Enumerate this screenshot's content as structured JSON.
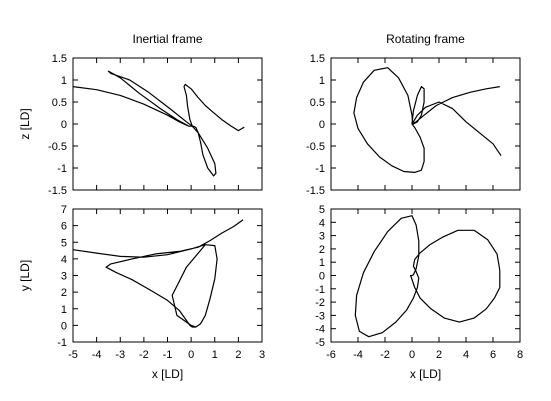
{
  "chart_data": [
    {
      "type": "line",
      "title": "Inertial frame",
      "xlabel": "",
      "ylabel": "z [LD]",
      "xlim": [
        -5,
        3
      ],
      "ylim": [
        -1.5,
        1.5
      ],
      "xticks": [],
      "yticks": [
        "1.5",
        "1",
        "0.5",
        "0",
        "-0.5",
        "-1",
        "-1.5"
      ],
      "grid": false,
      "series": [
        {
          "x": [
            -5.0,
            -4.0,
            -3.0,
            -2.0,
            -1.0,
            -0.5,
            -0.1,
            0.05,
            -0.2,
            -0.9,
            -1.8,
            -2.6,
            -3.4,
            -3.5,
            -3.0,
            -2.2,
            -1.3,
            -0.6,
            -0.1,
            0.05,
            0.1,
            0.2,
            0.3,
            0.4,
            0.5,
            0.7,
            0.95,
            1.05,
            1.0,
            0.7,
            0.3,
            0.05,
            -0.05,
            -0.15,
            -0.2,
            -0.3,
            -0.25,
            0.0,
            0.3,
            0.6,
            0.9,
            1.3,
            1.7,
            2.0,
            2.25
          ],
          "y": [
            0.85,
            0.78,
            0.65,
            0.45,
            0.2,
            0.05,
            -0.05,
            -0.05,
            0.05,
            0.35,
            0.72,
            1.0,
            1.15,
            1.2,
            1.05,
            0.7,
            0.35,
            0.1,
            -0.05,
            -0.05,
            -0.05,
            -0.08,
            -0.2,
            -0.42,
            -0.7,
            -1.0,
            -1.18,
            -1.12,
            -0.9,
            -0.55,
            -0.2,
            -0.05,
            0.1,
            0.4,
            0.65,
            0.85,
            0.9,
            0.8,
            0.6,
            0.42,
            0.28,
            0.1,
            -0.05,
            -0.15,
            -0.07
          ]
        }
      ]
    },
    {
      "type": "line",
      "title": "Rotating frame",
      "xlabel": "",
      "ylabel": "",
      "xlim": [
        -6,
        8
      ],
      "ylim": [
        -1.5,
        1.5
      ],
      "xticks": [],
      "yticks": [
        "1.5",
        "1",
        "0.5",
        "0",
        "-0.5",
        "-1",
        "-1.5"
      ],
      "grid": false,
      "series": [
        {
          "x": [
            6.5,
            5.5,
            4.3,
            3.0,
            1.8,
            0.9,
            0.3,
            0.05,
            0.0,
            -0.3,
            -1.0,
            -1.8,
            -2.8,
            -3.6,
            -4.1,
            -4.3,
            -4.0,
            -3.3,
            -2.4,
            -1.5,
            -0.6,
            0.2,
            0.7,
            0.9,
            0.9,
            0.6,
            0.2,
            0.0,
            0.1,
            0.4,
            0.7,
            0.9,
            0.9,
            0.7,
            0.4,
            0.1,
            0.0,
            0.4,
            1.0,
            2.0,
            3.0,
            4.0,
            5.0,
            6.0,
            6.6
          ],
          "y": [
            0.85,
            0.8,
            0.72,
            0.6,
            0.42,
            0.2,
            0.05,
            0.0,
            0.2,
            0.65,
            1.05,
            1.28,
            1.22,
            0.95,
            0.6,
            0.25,
            -0.1,
            -0.45,
            -0.75,
            -0.95,
            -1.08,
            -1.1,
            -1.05,
            -0.85,
            -0.55,
            -0.3,
            -0.08,
            0.0,
            0.3,
            0.65,
            0.85,
            0.8,
            0.5,
            0.2,
            0.05,
            0.0,
            0.0,
            0.2,
            0.38,
            0.5,
            0.35,
            0.05,
            -0.2,
            -0.45,
            -0.72
          ]
        }
      ]
    },
    {
      "type": "line",
      "title": "",
      "xlabel": "x [LD]",
      "ylabel": "y [LD]",
      "xlim": [
        -5,
        3
      ],
      "ylim": [
        -1,
        7
      ],
      "xticks": [
        "-5",
        "-4",
        "-3",
        "-2",
        "-1",
        "0",
        "1",
        "2",
        "3"
      ],
      "yticks": [
        "7",
        "6",
        "5",
        "4",
        "3",
        "2",
        "1",
        "0",
        "-1"
      ],
      "grid": false,
      "series": [
        {
          "x": [
            -5.0,
            -4.0,
            -3.0,
            -2.0,
            -1.0,
            0.0,
            0.6,
            1.0,
            1.1,
            1.0,
            0.8,
            0.6,
            0.4,
            0.2,
            0.05,
            -0.05,
            -0.2,
            -0.5,
            -1.0,
            -1.7,
            -2.5,
            -3.2,
            -3.6,
            -3.4,
            -2.5,
            -1.5,
            -0.5,
            0.3,
            0.8,
            1.3,
            1.8,
            2.2
          ],
          "y": [
            4.55,
            4.35,
            4.15,
            4.1,
            4.25,
            4.6,
            4.85,
            4.8,
            4.0,
            2.8,
            1.6,
            0.6,
            0.1,
            -0.1,
            -0.1,
            0.0,
            0.3,
            0.9,
            1.5,
            2.1,
            2.75,
            3.2,
            3.5,
            3.7,
            4.0,
            4.3,
            4.45,
            4.7,
            5.1,
            5.55,
            5.95,
            6.35
          ]
        },
        {
          "x": [
            0.6,
            -0.2,
            -0.8,
            -0.6,
            0.0,
            0.2
          ],
          "y": [
            4.85,
            3.5,
            1.8,
            0.6,
            0.0,
            -0.1
          ]
        }
      ]
    },
    {
      "type": "line",
      "title": "",
      "xlabel": "x [LD]",
      "ylabel": "",
      "xlim": [
        -6,
        8
      ],
      "ylim": [
        -5,
        5
      ],
      "xticks": [
        "-6",
        "-4",
        "-2",
        "0",
        "2",
        "4",
        "6",
        "8"
      ],
      "yticks": [
        "5",
        "4",
        "3",
        "2",
        "1",
        "0",
        "-1",
        "-2",
        "-3",
        "-4",
        "-5"
      ],
      "grid": false,
      "series": [
        {
          "x": [
            6.5,
            6.3,
            5.6,
            4.6,
            3.4,
            2.3,
            1.3,
            0.6,
            0.2,
            0.1,
            0.3,
            0.5,
            0.4,
            0.1,
            -0.4,
            -1.2,
            -2.2,
            -3.2,
            -3.9,
            -4.2,
            -4.1,
            -3.6,
            -2.8,
            -1.8,
            -0.8,
            0.0,
            0.3,
            0.5,
            0.5,
            0.3,
            0.1,
            0.0,
            -0.1,
            0.0,
            0.2,
            0.6,
            1.4,
            2.4,
            3.5,
            4.6,
            5.5,
            6.1,
            6.5,
            6.5
          ],
          "y": [
            0.4,
            1.6,
            2.7,
            3.4,
            3.4,
            2.9,
            2.3,
            1.7,
            1.2,
            0.7,
            0.3,
            -0.2,
            -0.9,
            -1.7,
            -2.6,
            -3.5,
            -4.3,
            -4.6,
            -4.2,
            -3.0,
            -1.5,
            0.2,
            1.8,
            3.3,
            4.3,
            4.5,
            3.8,
            2.6,
            1.5,
            0.5,
            0.05,
            0.0,
            0.0,
            -0.3,
            -0.9,
            -1.7,
            -2.5,
            -3.2,
            -3.5,
            -3.2,
            -2.5,
            -1.7,
            -0.9,
            0.4
          ]
        }
      ]
    }
  ]
}
